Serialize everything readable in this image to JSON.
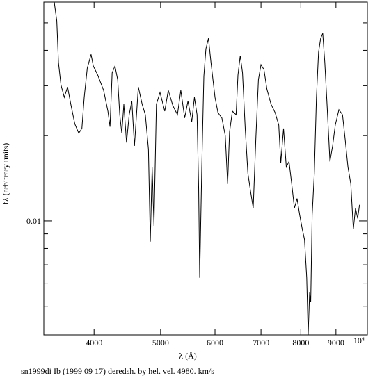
{
  "chart_data": {
    "type": "line",
    "xlabel": "λ (Å)",
    "ylabel": "fλ (arbitrary units)",
    "caption": "sn1999di Ib (1999 09 17) deredsh. by hel. vel.  4980. km/s",
    "xscale": "log",
    "yscale": "log",
    "color": "#000000",
    "xlim": [
      3380,
      10000
    ],
    "ylim": [
      0.00396,
      0.0592
    ],
    "xticks": [
      4000,
      5000,
      6000,
      7000,
      8000,
      9000,
      {
        "value": 10000,
        "label": "10⁴"
      }
    ],
    "yticks": [
      0.01
    ],
    "yminorticks": [
      0.005,
      0.006,
      0.007,
      0.008,
      0.009,
      0.02,
      0.03,
      0.04,
      0.05
    ],
    "x": [
      3500,
      3530,
      3550,
      3580,
      3620,
      3660,
      3700,
      3750,
      3800,
      3840,
      3870,
      3910,
      3960,
      3990,
      4050,
      4130,
      4190,
      4220,
      4250,
      4290,
      4330,
      4360,
      4390,
      4420,
      4460,
      4500,
      4540,
      4580,
      4640,
      4700,
      4750,
      4800,
      4830,
      4860,
      4890,
      4930,
      4990,
      5070,
      5130,
      5210,
      5290,
      5350,
      5420,
      5480,
      5550,
      5600,
      5650,
      5680,
      5700,
      5740,
      5780,
      5820,
      5870,
      5920,
      6000,
      6060,
      6140,
      6210,
      6260,
      6300,
      6360,
      6440,
      6480,
      6530,
      6580,
      6640,
      6700,
      6760,
      6820,
      6880,
      6940,
      7000,
      7070,
      7140,
      7240,
      7340,
      7430,
      7480,
      7550,
      7620,
      7690,
      7760,
      7830,
      7900,
      7970,
      8040,
      8100,
      8160,
      8200,
      8240,
      8270,
      8310,
      8370,
      8430,
      8490,
      8550,
      8610,
      8670,
      8740,
      8820,
      8900,
      8980,
      9090,
      9200,
      9280,
      9370,
      9460,
      9540,
      9610,
      9680,
      9740
    ],
    "values": [
      0.0592,
      0.0508,
      0.0362,
      0.0302,
      0.0273,
      0.0297,
      0.0258,
      0.022,
      0.0204,
      0.0212,
      0.0273,
      0.0346,
      0.0387,
      0.0352,
      0.0327,
      0.0289,
      0.0244,
      0.0215,
      0.0333,
      0.0352,
      0.0315,
      0.0237,
      0.0204,
      0.0258,
      0.0189,
      0.0237,
      0.0265,
      0.0184,
      0.0297,
      0.0258,
      0.0237,
      0.0179,
      0.00845,
      0.0155,
      0.00961,
      0.0258,
      0.0284,
      0.0244,
      0.0289,
      0.0255,
      0.0237,
      0.0289,
      0.0231,
      0.0265,
      0.0224,
      0.0273,
      0.0237,
      0.0131,
      0.0063,
      0.0155,
      0.0324,
      0.0405,
      0.0441,
      0.0362,
      0.0273,
      0.0241,
      0.0231,
      0.02,
      0.0135,
      0.0206,
      0.0244,
      0.0237,
      0.0327,
      0.0383,
      0.0333,
      0.0212,
      0.0147,
      0.0127,
      0.0111,
      0.0195,
      0.0315,
      0.0356,
      0.0342,
      0.0292,
      0.0258,
      0.0241,
      0.0218,
      0.016,
      0.0212,
      0.0155,
      0.0162,
      0.0135,
      0.0111,
      0.012,
      0.0105,
      0.00935,
      0.00859,
      0.0063,
      0.00396,
      0.00562,
      0.00517,
      0.0105,
      0.0147,
      0.0273,
      0.0394,
      0.0441,
      0.0459,
      0.0362,
      0.0251,
      0.0162,
      0.0184,
      0.0218,
      0.0247,
      0.0237,
      0.0195,
      0.0155,
      0.0135,
      0.00935,
      0.0111,
      0.0102,
      0.0114
    ]
  }
}
